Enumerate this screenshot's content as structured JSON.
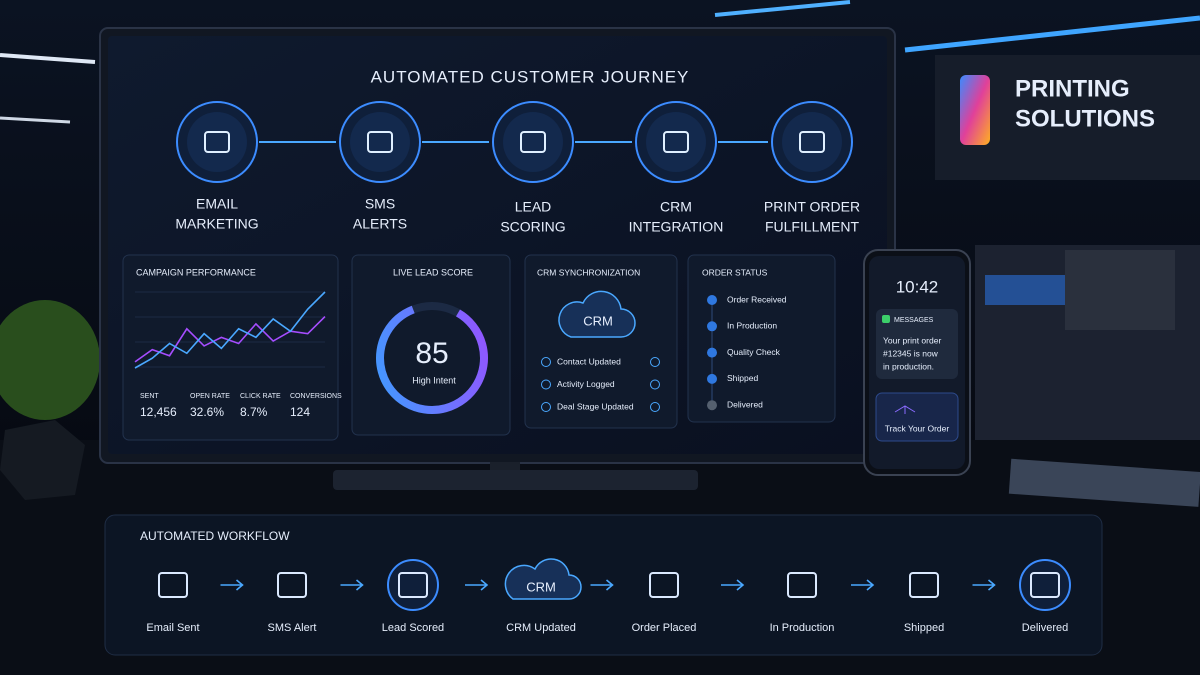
{
  "screen": {
    "title": "AUTOMATED CUSTOMER JOURNEY",
    "steps": [
      [
        "EMAIL",
        "MARKETING"
      ],
      [
        "SMS",
        "ALERTS"
      ],
      [
        "LEAD",
        "SCORING"
      ],
      [
        "CRM",
        "INTEGRATION"
      ],
      [
        "PRINT ORDER",
        "FULFILLMENT"
      ]
    ]
  },
  "campaign": {
    "title": "CAMPAIGN PERFORMANCE",
    "chart": {
      "type": "line",
      "series": [
        {
          "color": "#a64dff",
          "values": [
            35,
            45,
            40,
            62,
            48,
            55,
            50,
            66,
            52,
            60,
            58,
            72
          ]
        },
        {
          "color": "#4aa8ff",
          "values": [
            30,
            38,
            50,
            42,
            58,
            46,
            62,
            55,
            70,
            60,
            78,
            92
          ]
        }
      ]
    },
    "metrics": [
      {
        "label": "SENT",
        "value": "12,456"
      },
      {
        "label": "OPEN RATE",
        "value": "32.6%"
      },
      {
        "label": "CLICK RATE",
        "value": "8.7%"
      },
      {
        "label": "CONVERSIONS",
        "value": "124"
      }
    ]
  },
  "lead": {
    "title": "LIVE LEAD SCORE",
    "score": 85,
    "caption": "High Intent"
  },
  "crm": {
    "title": "CRM SYNCHRONIZATION",
    "badge": "CRM",
    "items": [
      "Contact Updated",
      "Activity Logged",
      "Deal Stage Updated"
    ]
  },
  "order": {
    "title": "ORDER STATUS",
    "items": [
      "Order Received",
      "In Production",
      "Quality Check",
      "Shipped",
      "Delivered"
    ]
  },
  "phone": {
    "time": "10:42",
    "app": "MESSAGES",
    "message": [
      "Your print order",
      "#12345 is now",
      "in production."
    ],
    "button": "Track Your Order"
  },
  "sign": {
    "lines": [
      "PRINTING",
      "SOLUTIONS"
    ]
  },
  "workflow": {
    "title": "AUTOMATED WORKFLOW",
    "badge": "CRM",
    "steps": [
      "Email Sent",
      "SMS Alert",
      "Lead Scored",
      "CRM Updated",
      "Order Placed",
      "In Production",
      "Shipped",
      "Delivered"
    ]
  }
}
